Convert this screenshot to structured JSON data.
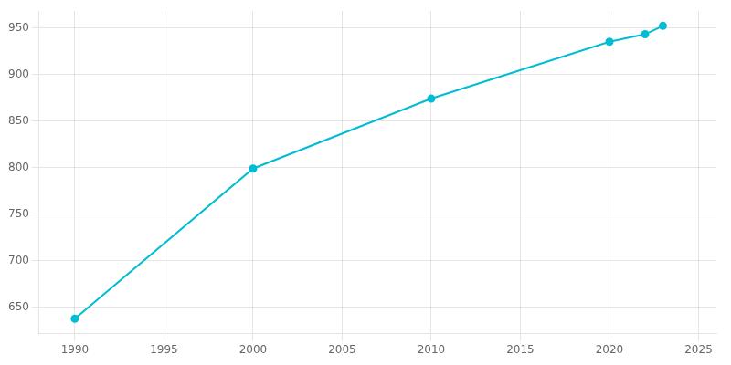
{
  "chart_data": {
    "type": "line",
    "x": [
      1990,
      2000,
      2010,
      2020,
      2022,
      2023
    ],
    "values": [
      638,
      799,
      874,
      935,
      943,
      952
    ],
    "color": "#00BCD4",
    "marker": "circle",
    "xlim": [
      1988,
      2026
    ],
    "ylim": [
      622,
      968
    ],
    "xticks": [
      1990,
      1995,
      2000,
      2005,
      2010,
      2015,
      2020,
      2025
    ],
    "yticks": [
      650,
      700,
      750,
      800,
      850,
      900,
      950
    ],
    "grid": true
  }
}
